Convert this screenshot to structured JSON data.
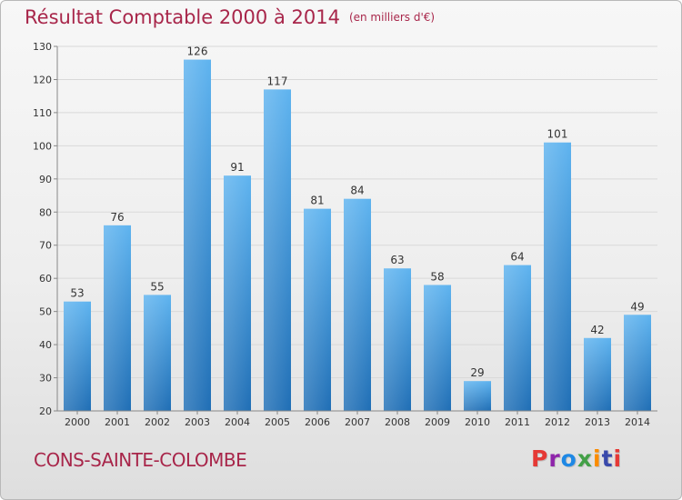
{
  "header": {
    "title": "Résultat Comptable 2000 à 2014",
    "unit": "(en milliers d'€)"
  },
  "footer": {
    "commune": "CONS-SAINTE-COLOMBE",
    "logo_text": "Proxiti",
    "logo_colors": [
      "#e53935",
      "#8e24aa",
      "#1e88e5",
      "#43a047",
      "#fb8c00",
      "#3949ab",
      "#e53935"
    ]
  },
  "colors": {
    "bar_top": "#5eb3ef",
    "bar_bottom": "#1f6eb5",
    "title": "#a8264a",
    "grid": "#d9d9d9"
  },
  "chart_data": {
    "type": "bar",
    "title": "Résultat Comptable 2000 à 2014",
    "subtitle": "(en milliers d'€)",
    "categories": [
      "2000",
      "2001",
      "2002",
      "2003",
      "2004",
      "2005",
      "2006",
      "2007",
      "2008",
      "2009",
      "2010",
      "2011",
      "2012",
      "2013",
      "2014"
    ],
    "values": [
      53,
      76,
      55,
      126,
      91,
      117,
      81,
      84,
      63,
      58,
      29,
      64,
      101,
      42,
      49
    ],
    "ylim": [
      20,
      130
    ],
    "yticks": [
      20,
      30,
      40,
      50,
      60,
      70,
      80,
      90,
      100,
      110,
      120,
      130
    ],
    "grid": true,
    "data_labels": true,
    "xlabel": "",
    "ylabel": ""
  }
}
